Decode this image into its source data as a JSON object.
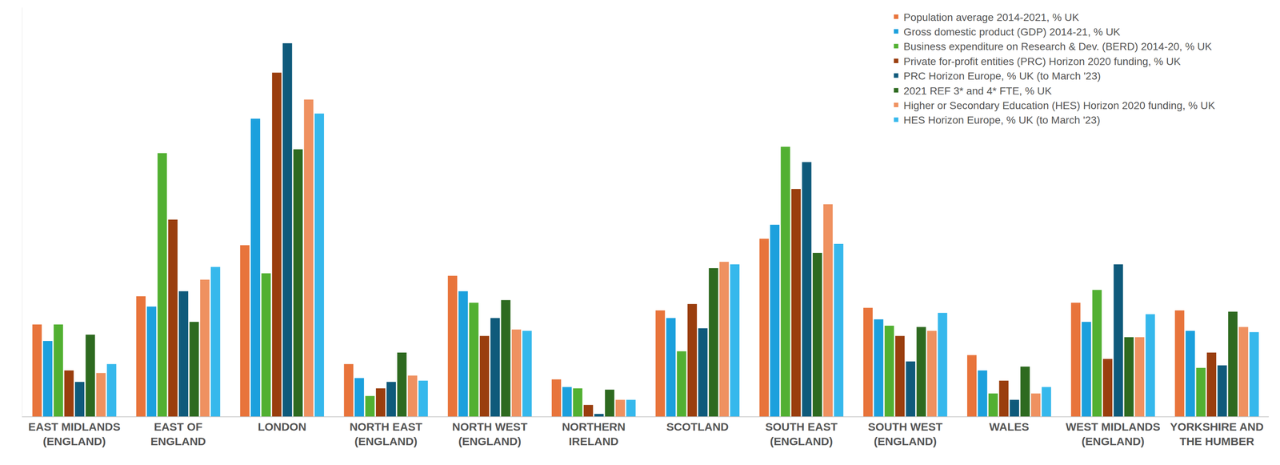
{
  "chart_data": {
    "type": "bar",
    "categories": [
      "EAST MIDLANDS\n(ENGLAND)",
      "EAST OF\nENGLAND",
      "LONDON",
      "NORTH EAST\n(ENGLAND)",
      "NORTH WEST\n(ENGLAND)",
      "NORTHERN\nIRELAND",
      "SCOTLAND",
      "SOUTH EAST\n(ENGLAND)",
      "SOUTH WEST\n(ENGLAND)",
      "WALES",
      "WEST MIDLANDS\n(ENGLAND)",
      "YORKSHIRE AND\nTHE HUMBER"
    ],
    "series": [
      {
        "name": "Population average 2014-2021, % UK",
        "color": "#E8743B",
        "values": [
          7.2,
          9.4,
          13.4,
          4.1,
          11.0,
          2.9,
          8.3,
          13.9,
          8.5,
          4.8,
          8.9,
          8.3
        ]
      },
      {
        "name": "Gross domestic product (GDP) 2014-21, % UK",
        "color": "#1CA0DD",
        "values": [
          5.9,
          8.6,
          23.3,
          3.0,
          9.8,
          2.3,
          7.7,
          15.0,
          7.6,
          3.6,
          7.4,
          6.7
        ]
      },
      {
        "name": "Business expenditure on Research & Dev. (BERD) 2014-20, % UK",
        "color": "#52B032",
        "values": [
          7.2,
          20.6,
          11.2,
          1.6,
          8.9,
          2.2,
          5.1,
          21.1,
          7.1,
          1.8,
          9.9,
          3.8
        ]
      },
      {
        "name": "Private for-profit entities (PRC) Horizon 2020 funding, % UK",
        "color": "#9A3E0E",
        "values": [
          3.6,
          15.4,
          26.9,
          2.2,
          6.3,
          0.9,
          8.8,
          17.8,
          6.3,
          2.8,
          4.5,
          5.0
        ]
      },
      {
        "name": "PRC Horizon Europe, % UK (to March '23)",
        "color": "#0F5A7B",
        "values": [
          2.7,
          9.8,
          29.2,
          2.7,
          7.7,
          0.2,
          6.9,
          19.9,
          4.3,
          1.3,
          11.9,
          4.0
        ]
      },
      {
        "name": "2021 REF 3* and 4* FTE, % UK",
        "color": "#2E6A20",
        "values": [
          6.4,
          7.4,
          20.9,
          5.0,
          9.1,
          2.1,
          11.6,
          12.8,
          7.0,
          3.9,
          6.2,
          8.2
        ]
      },
      {
        "name": "Higher or Secondary Education (HES) Horizon 2020 funding, % UK",
        "color": "#EF9160",
        "values": [
          3.4,
          10.7,
          24.8,
          3.2,
          6.8,
          1.3,
          12.1,
          16.6,
          6.7,
          1.8,
          6.2,
          7.0
        ]
      },
      {
        "name": "HES Horizon Europe, % UK (to March '23)",
        "color": "#36B8EC",
        "values": [
          4.1,
          11.7,
          23.7,
          2.8,
          6.7,
          1.3,
          11.9,
          13.5,
          8.1,
          2.3,
          8.0,
          6.6
        ]
      }
    ],
    "ylim": [
      0,
      32
    ],
    "yticks": [],
    "grid": false,
    "legend": "top right",
    "tick_labels": "x"
  }
}
